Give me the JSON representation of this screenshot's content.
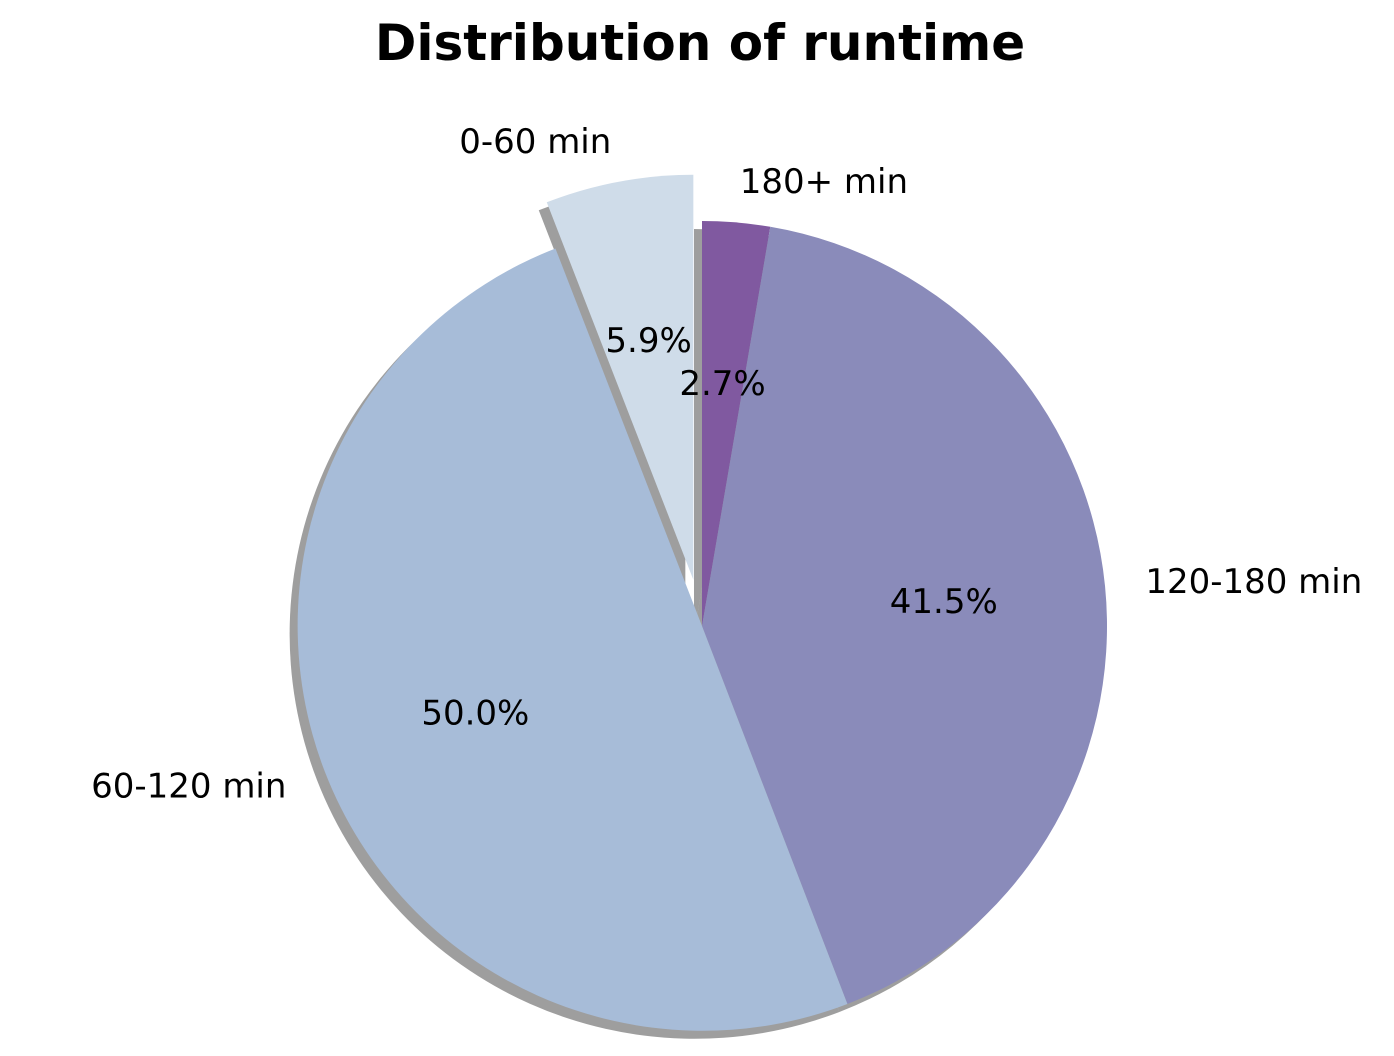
{
  "chart_data": {
    "type": "pie",
    "title": "Distribution of runtime",
    "slices": [
      {
        "label": "180+ min",
        "value": 2.7,
        "pct_label": "2.7%",
        "color": "#8059a0",
        "exploded": false
      },
      {
        "label": "120-180 min",
        "value": 41.5,
        "pct_label": "41.5%",
        "color": "#8a8bba",
        "exploded": false
      },
      {
        "label": "60-120 min",
        "value": 50.0,
        "pct_label": "50.0%",
        "color": "#a7bcd8",
        "exploded": false
      },
      {
        "label": "0-60 min",
        "value": 5.9,
        "pct_label": "5.9%",
        "color": "#cfdce9",
        "exploded": true
      }
    ],
    "start_angle": 90,
    "direction": "clockwise",
    "shadow": true
  }
}
